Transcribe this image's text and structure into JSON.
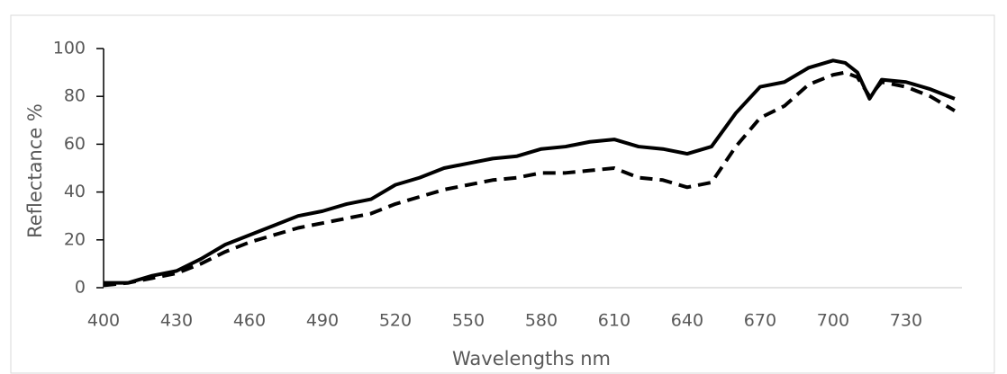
{
  "chart_data": {
    "type": "line",
    "x_label": "Wavelengths nm",
    "y_label": "Reflectance %",
    "x": [
      400,
      410,
      420,
      430,
      440,
      450,
      460,
      470,
      480,
      490,
      500,
      510,
      520,
      530,
      540,
      550,
      560,
      570,
      580,
      590,
      600,
      610,
      620,
      630,
      640,
      650,
      660,
      670,
      680,
      690,
      700,
      705,
      710,
      715,
      720,
      730,
      740,
      750
    ],
    "series": [
      {
        "color": "#000000",
        "dash": "solid",
        "values": [
          2,
          2,
          5,
          7,
          12,
          18,
          22,
          26,
          30,
          32,
          35,
          37,
          43,
          46,
          50,
          52,
          54,
          55,
          58,
          59,
          61,
          62,
          59,
          58,
          56,
          59,
          73,
          84,
          86,
          92,
          95,
          94,
          90,
          79,
          87,
          86,
          83,
          79
        ]
      },
      {
        "color": "#000000",
        "dash": "dashed",
        "values": [
          1,
          2,
          4,
          6,
          10,
          15,
          19,
          22,
          25,
          27,
          29,
          31,
          35,
          38,
          41,
          43,
          45,
          46,
          48,
          48,
          49,
          50,
          46,
          45,
          42,
          44,
          59,
          71,
          76,
          85,
          89,
          90,
          88,
          80,
          86,
          84,
          80,
          74
        ]
      }
    ],
    "xlim": [
      400,
      753
    ],
    "xticks": [
      400,
      430,
      460,
      490,
      520,
      550,
      580,
      610,
      640,
      670,
      700,
      730
    ],
    "ylim": [
      0,
      100
    ],
    "yticks": [
      0,
      20,
      40,
      60,
      80,
      100
    ],
    "grid": false
  }
}
